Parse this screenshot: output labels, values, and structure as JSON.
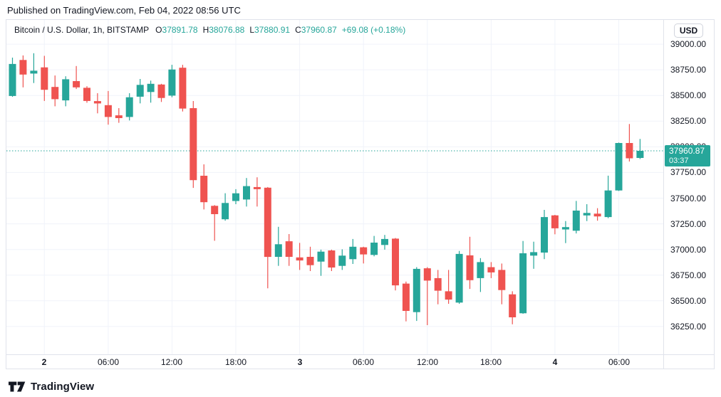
{
  "publish_bar": {
    "text": "Published on TradingView.com, Feb 04, 2022 08:56 UTC"
  },
  "legend": {
    "symbol": "Bitcoin / U.S. Dollar, 1h, BITSTAMP",
    "ohlc": [
      {
        "key": "O",
        "value": "37891.78"
      },
      {
        "key": "H",
        "value": "38076.88"
      },
      {
        "key": "L",
        "value": "37880.91"
      },
      {
        "key": "C",
        "value": "37960.87"
      }
    ],
    "change": "+69.08 (+0.18%)"
  },
  "price_axis": {
    "currency_button": "USD",
    "labels": [
      "39000.00",
      "38750.00",
      "38500.00",
      "38250.00",
      "38000.00",
      "37750.00",
      "37500.00",
      "37250.00",
      "37000.00",
      "36750.00",
      "36500.00",
      "36250.00"
    ],
    "last_price_label": {
      "price": "37960.87",
      "countdown": "03:37"
    }
  },
  "time_axis": {
    "labels": [
      {
        "text": "2",
        "major": true,
        "candle_index": 3
      },
      {
        "text": "06:00",
        "major": false,
        "candle_index": 9
      },
      {
        "text": "12:00",
        "major": false,
        "candle_index": 15
      },
      {
        "text": "18:00",
        "major": false,
        "candle_index": 21
      },
      {
        "text": "3",
        "major": true,
        "candle_index": 27
      },
      {
        "text": "06:00",
        "major": false,
        "candle_index": 33
      },
      {
        "text": "12:00",
        "major": false,
        "candle_index": 39
      },
      {
        "text": "18:00",
        "major": false,
        "candle_index": 45
      },
      {
        "text": "4",
        "major": true,
        "candle_index": 51
      },
      {
        "text": "06:00",
        "major": false,
        "candle_index": 57
      }
    ]
  },
  "footer": {
    "brand": "TradingView"
  },
  "colors": {
    "up": "#26a69a",
    "down": "#ef5350",
    "accent": "#26a69a",
    "grid": "#f0f3fa",
    "border": "#e0e3eb",
    "text": "#131722"
  },
  "chart_data": {
    "type": "candlestick",
    "title": "Bitcoin / U.S. Dollar",
    "interval": "1h",
    "exchange": "BITSTAMP",
    "last_price": 37960.87,
    "countdown": "03:37",
    "y_axis": {
      "ticks": [
        39000,
        38750,
        38500,
        38250,
        38000,
        37750,
        37500,
        37250,
        37000,
        36750,
        36500,
        36250
      ],
      "tick_step": 250
    },
    "columns": [
      "time",
      "open",
      "high",
      "low",
      "close"
    ],
    "candles": [
      [
        "Feb 1 21:00",
        38495,
        38869,
        38487,
        38807
      ],
      [
        "Feb 1 22:00",
        38846,
        38890,
        38579,
        38704
      ],
      [
        "Feb 1 23:00",
        38713,
        38912,
        38621,
        38741
      ],
      [
        "Feb 2 00:00",
        38774,
        38886,
        38447,
        38556
      ],
      [
        "Feb 2 01:00",
        38583,
        38695,
        38395,
        38464
      ],
      [
        "Feb 2 02:00",
        38452,
        38687,
        38395,
        38658
      ],
      [
        "Feb 2 03:00",
        38640,
        38787,
        38563,
        38579
      ],
      [
        "Feb 2 04:00",
        38575,
        38590,
        38429,
        38447
      ],
      [
        "Feb 2 05:00",
        38445,
        38522,
        38326,
        38422
      ],
      [
        "Feb 2 06:00",
        38406,
        38544,
        38216,
        38291
      ],
      [
        "Feb 2 07:00",
        38307,
        38377,
        38234,
        38280
      ],
      [
        "Feb 2 08:00",
        38291,
        38522,
        38257,
        38483
      ],
      [
        "Feb 2 09:00",
        38488,
        38661,
        38423,
        38603
      ],
      [
        "Feb 2 10:00",
        38534,
        38645,
        38430,
        38614
      ],
      [
        "Feb 2 11:00",
        38607,
        38614,
        38437,
        38476
      ],
      [
        "Feb 2 12:00",
        38499,
        38799,
        38483,
        38753
      ],
      [
        "Feb 2 13:00",
        38770,
        38799,
        38344,
        38372
      ],
      [
        "Feb 2 14:00",
        38377,
        38446,
        37600,
        37676
      ],
      [
        "Feb 2 15:00",
        37718,
        37829,
        37390,
        37460
      ],
      [
        "Feb 2 16:00",
        37425,
        37432,
        37085,
        37344
      ],
      [
        "Feb 2 17:00",
        37294,
        37548,
        37280,
        37453
      ],
      [
        "Feb 2 18:00",
        37472,
        37587,
        37441,
        37547
      ],
      [
        "Feb 2 19:00",
        37487,
        37696,
        37418,
        37617
      ],
      [
        "Feb 2 20:00",
        37608,
        37703,
        37418,
        37587
      ],
      [
        "Feb 2 21:00",
        37602,
        37608,
        36621,
        36928
      ],
      [
        "Feb 2 22:00",
        36928,
        37221,
        36840,
        37051
      ],
      [
        "Feb 2 23:00",
        37080,
        37150,
        36840,
        36928
      ],
      [
        "Feb 3 00:00",
        36923,
        37064,
        36801,
        36893
      ],
      [
        "Feb 3 01:00",
        36928,
        37027,
        36790,
        36847
      ],
      [
        "Feb 3 02:00",
        36882,
        36998,
        36743,
        36979
      ],
      [
        "Feb 3 03:00",
        36991,
        36998,
        36790,
        36825
      ],
      [
        "Feb 3 04:00",
        36840,
        37002,
        36801,
        36940
      ],
      [
        "Feb 3 05:00",
        36906,
        37102,
        36859,
        37027
      ],
      [
        "Feb 3 06:00",
        37021,
        37027,
        36864,
        36952
      ],
      [
        "Feb 3 07:00",
        36947,
        37132,
        36933,
        37067
      ],
      [
        "Feb 3 08:00",
        37044,
        37142,
        36998,
        37102
      ],
      [
        "Feb 3 09:00",
        37106,
        37112,
        36601,
        36651
      ],
      [
        "Feb 3 10:00",
        36668,
        36687,
        36300,
        36402
      ],
      [
        "Feb 3 11:00",
        36390,
        36828,
        36304,
        36811
      ],
      [
        "Feb 3 12:00",
        36817,
        36828,
        36263,
        36697
      ],
      [
        "Feb 3 13:00",
        36721,
        36801,
        36466,
        36598
      ],
      [
        "Feb 3 14:00",
        36593,
        36801,
        36471,
        36512
      ],
      [
        "Feb 3 15:00",
        36483,
        36986,
        36471,
        36957
      ],
      [
        "Feb 3 16:00",
        36943,
        37124,
        36616,
        36701
      ],
      [
        "Feb 3 17:00",
        36721,
        36916,
        36586,
        36877
      ],
      [
        "Feb 3 18:00",
        36828,
        36877,
        36721,
        36777
      ],
      [
        "Feb 3 19:00",
        36801,
        36863,
        36466,
        36605
      ],
      [
        "Feb 3 20:00",
        36563,
        36593,
        36271,
        36339
      ],
      [
        "Feb 3 21:00",
        36379,
        37083,
        36374,
        36963
      ],
      [
        "Feb 3 22:00",
        36940,
        37076,
        36812,
        36974
      ],
      [
        "Feb 3 23:00",
        36970,
        37386,
        36906,
        37316
      ],
      [
        "Feb 4 00:00",
        37332,
        37337,
        37148,
        37206
      ],
      [
        "Feb 4 01:00",
        37195,
        37277,
        37062,
        37218
      ],
      [
        "Feb 4 02:00",
        37183,
        37473,
        37156,
        37379
      ],
      [
        "Feb 4 03:00",
        37332,
        37441,
        37277,
        37356
      ],
      [
        "Feb 4 04:00",
        37349,
        37402,
        37280,
        37322
      ],
      [
        "Feb 4 05:00",
        37316,
        37719,
        37305,
        37575
      ],
      [
        "Feb 4 06:00",
        37575,
        38041,
        37570,
        38037
      ],
      [
        "Feb 4 07:00",
        38037,
        38222,
        37857,
        37888
      ],
      [
        "Feb 4 08:00",
        37891.78,
        38076.88,
        37880.91,
        37960.87
      ]
    ]
  }
}
